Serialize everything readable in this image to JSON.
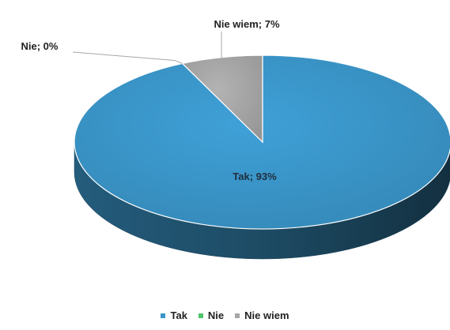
{
  "chart_data": {
    "type": "pie",
    "title": "",
    "categories": [
      "Tak",
      "Nie",
      "Nie wiem"
    ],
    "values": [
      93,
      0,
      7
    ],
    "data_labels": [
      "Tak; 93%",
      "Nie; 0%",
      "Nie wiem; 7%"
    ],
    "colors": [
      "#3a95c8",
      "#4ec46a",
      "#a6a6a6"
    ],
    "legend": {
      "position": "bottom",
      "items": [
        {
          "label": "Tak",
          "color": "#3a95c8"
        },
        {
          "label": "Nie",
          "color": "#4ec46a"
        },
        {
          "label": "Nie wiem",
          "color": "#a6a6a6"
        }
      ]
    },
    "style": "3d"
  }
}
